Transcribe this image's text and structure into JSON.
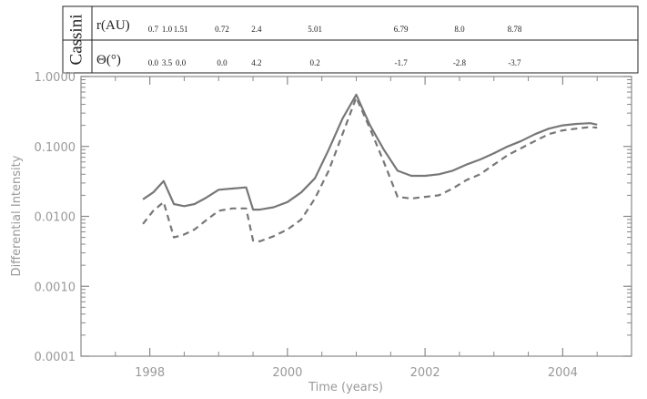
{
  "chart_data": {
    "type": "line",
    "xlabel": "Time (years)",
    "ylabel": "Differential Intensity",
    "xlim": [
      1997.0,
      2005.0
    ],
    "ylim": [
      0.0001,
      1.0
    ],
    "y_scale": "log",
    "x_ticks": [
      1998,
      2000,
      2002,
      2004
    ],
    "x_tick_labels": [
      "1998",
      "2000",
      "2002",
      "2004"
    ],
    "y_ticks": [
      0.0001,
      0.001,
      0.01,
      0.1,
      1.0
    ],
    "y_tick_labels": [
      "0.0001",
      "0.0010",
      "0.0100",
      "0.1000",
      "1.0000"
    ],
    "grid": false,
    "series": [
      {
        "style": "solid",
        "color": "#777777",
        "x": [
          1997.9,
          1998.05,
          1998.2,
          1998.35,
          1998.5,
          1998.65,
          1998.8,
          1999.0,
          1999.2,
          1999.4,
          1999.5,
          1999.6,
          1999.8,
          2000.0,
          2000.2,
          2000.4,
          2000.6,
          2000.8,
          2001.0,
          2001.2,
          2001.4,
          2001.6,
          2001.8,
          2002.0,
          2002.2,
          2002.4,
          2002.6,
          2002.8,
          2003.0,
          2003.2,
          2003.4,
          2003.6,
          2003.8,
          2004.0,
          2004.2,
          2004.4,
          2004.5
        ],
        "y": [
          0.0175,
          0.022,
          0.032,
          0.015,
          0.014,
          0.015,
          0.018,
          0.024,
          0.025,
          0.026,
          0.0125,
          0.0125,
          0.0135,
          0.016,
          0.022,
          0.035,
          0.09,
          0.25,
          0.55,
          0.2,
          0.09,
          0.045,
          0.038,
          0.038,
          0.04,
          0.045,
          0.055,
          0.065,
          0.08,
          0.1,
          0.12,
          0.15,
          0.18,
          0.2,
          0.21,
          0.215,
          0.205
        ]
      },
      {
        "style": "dashed",
        "color": "#777777",
        "x": [
          1997.9,
          1998.05,
          1998.2,
          1998.35,
          1998.5,
          1998.65,
          1998.8,
          1999.0,
          1999.2,
          1999.4,
          1999.5,
          1999.6,
          1999.8,
          2000.0,
          2000.2,
          2000.4,
          2000.6,
          2000.8,
          2001.0,
          2001.2,
          2001.4,
          2001.6,
          2001.8,
          2002.0,
          2002.2,
          2002.4,
          2002.6,
          2002.8,
          2003.0,
          2003.2,
          2003.4,
          2003.6,
          2003.8,
          2004.0,
          2004.2,
          2004.4,
          2004.5
        ],
        "y": [
          0.0078,
          0.012,
          0.016,
          0.005,
          0.0055,
          0.0065,
          0.0085,
          0.012,
          0.013,
          0.013,
          0.0045,
          0.0044,
          0.0052,
          0.0065,
          0.009,
          0.018,
          0.045,
          0.15,
          0.5,
          0.18,
          0.06,
          0.019,
          0.018,
          0.019,
          0.02,
          0.025,
          0.033,
          0.04,
          0.055,
          0.075,
          0.095,
          0.12,
          0.15,
          0.17,
          0.18,
          0.19,
          0.185
        ]
      }
    ]
  },
  "table": {
    "label": "Cassini",
    "r_label": "r(AU)",
    "theta_label": "Θ(°)",
    "columns": [
      {
        "x": 1998.05,
        "r": "0.7",
        "theta": "0.0"
      },
      {
        "x": 1998.25,
        "r": "1.0",
        "theta": "3.5"
      },
      {
        "x": 1998.45,
        "r": "1.51",
        "theta": "0.0"
      },
      {
        "x": 1999.05,
        "r": "0.72",
        "theta": "0.0"
      },
      {
        "x": 1999.55,
        "r": "2.4",
        "theta": "4.2"
      },
      {
        "x": 2000.4,
        "r": "5.01",
        "theta": "0.2"
      },
      {
        "x": 2001.65,
        "r": "6.79",
        "theta": "-1.7"
      },
      {
        "x": 2002.5,
        "r": "8.0",
        "theta": "-2.8"
      },
      {
        "x": 2003.3,
        "r": "8.78",
        "theta": "-3.7"
      }
    ]
  }
}
